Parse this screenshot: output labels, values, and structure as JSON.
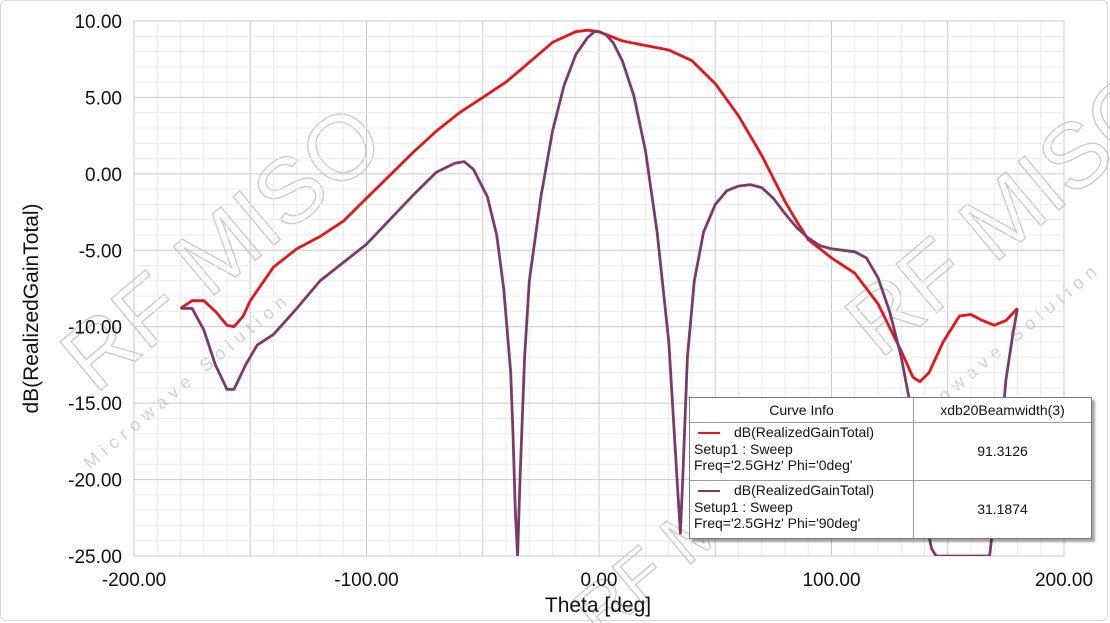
{
  "chart_data": {
    "type": "line",
    "xlabel": "Theta [deg]",
    "ylabel": "dB(RealizedGainTotal)",
    "xlim": [
      -200,
      200
    ],
    "ylim": [
      -25,
      10
    ],
    "x_ticks": [
      "-200.00",
      "-100.00",
      "0.00",
      "100.00",
      "200.00"
    ],
    "y_ticks": [
      "10.00",
      "5.00",
      "0.00",
      "-5.00",
      "-10.00",
      "-15.00",
      "-20.00",
      "-25.00"
    ],
    "grid": true,
    "series": [
      {
        "name": "dB(RealizedGainTotal) Setup1 : Sweep Freq='2.5GHz' Phi='0deg'",
        "color": "#e8141c",
        "points": [
          [
            -180,
            -8.8
          ],
          [
            -175,
            -8.3
          ],
          [
            -170,
            -8.3
          ],
          [
            -165,
            -9.0
          ],
          [
            -160,
            -9.9
          ],
          [
            -157,
            -10.0
          ],
          [
            -153,
            -9.3
          ],
          [
            -150,
            -8.3
          ],
          [
            -140,
            -6.1
          ],
          [
            -130,
            -4.9
          ],
          [
            -120,
            -4.1
          ],
          [
            -110,
            -3.1
          ],
          [
            -100,
            -1.6
          ],
          [
            -90,
            -0.1
          ],
          [
            -80,
            1.4
          ],
          [
            -70,
            2.8
          ],
          [
            -60,
            4.0
          ],
          [
            -50,
            5.0
          ],
          [
            -40,
            6.0
          ],
          [
            -30,
            7.3
          ],
          [
            -20,
            8.6
          ],
          [
            -10,
            9.3
          ],
          [
            -5,
            9.4
          ],
          [
            0,
            9.3
          ],
          [
            5,
            9.0
          ],
          [
            10,
            8.7
          ],
          [
            20,
            8.4
          ],
          [
            30,
            8.1
          ],
          [
            40,
            7.4
          ],
          [
            50,
            5.9
          ],
          [
            60,
            3.8
          ],
          [
            70,
            1.2
          ],
          [
            80,
            -1.8
          ],
          [
            85,
            -3.1
          ],
          [
            90,
            -4.3
          ],
          [
            100,
            -5.5
          ],
          [
            110,
            -6.5
          ],
          [
            120,
            -8.5
          ],
          [
            130,
            -11.6
          ],
          [
            135,
            -13.3
          ],
          [
            138,
            -13.6
          ],
          [
            142,
            -13.0
          ],
          [
            148,
            -11.0
          ],
          [
            155,
            -9.3
          ],
          [
            160,
            -9.2
          ],
          [
            165,
            -9.6
          ],
          [
            170,
            -9.9
          ],
          [
            175,
            -9.6
          ],
          [
            180,
            -8.8
          ]
        ]
      },
      {
        "name": "dB(RealizedGainTotal) Setup1 : Sweep Freq='2.5GHz' Phi='90deg'",
        "color": "#7b3b6a",
        "points": [
          [
            -180,
            -8.8
          ],
          [
            -175,
            -8.8
          ],
          [
            -170,
            -10.2
          ],
          [
            -165,
            -12.5
          ],
          [
            -160,
            -14.1
          ],
          [
            -157,
            -14.1
          ],
          [
            -152,
            -12.5
          ],
          [
            -147,
            -11.2
          ],
          [
            -140,
            -10.5
          ],
          [
            -130,
            -8.8
          ],
          [
            -120,
            -7.0
          ],
          [
            -110,
            -5.8
          ],
          [
            -100,
            -4.6
          ],
          [
            -90,
            -3.0
          ],
          [
            -80,
            -1.4
          ],
          [
            -70,
            0.1
          ],
          [
            -62,
            0.7
          ],
          [
            -58,
            0.8
          ],
          [
            -54,
            0.3
          ],
          [
            -48,
            -1.5
          ],
          [
            -44,
            -4.0
          ],
          [
            -41,
            -7.5
          ],
          [
            -38,
            -13.0
          ],
          [
            -37,
            -17.0
          ],
          [
            -36,
            -22.0
          ],
          [
            -35,
            -25.0
          ],
          [
            -34,
            -20.0
          ],
          [
            -32,
            -12.0
          ],
          [
            -30,
            -7.0
          ],
          [
            -25,
            -1.5
          ],
          [
            -20,
            2.8
          ],
          [
            -15,
            5.8
          ],
          [
            -10,
            7.8
          ],
          [
            -5,
            8.9
          ],
          [
            -2,
            9.3
          ],
          [
            0,
            9.3
          ],
          [
            3,
            9.1
          ],
          [
            6,
            8.6
          ],
          [
            10,
            7.4
          ],
          [
            15,
            5.1
          ],
          [
            20,
            1.5
          ],
          [
            25,
            -3.8
          ],
          [
            30,
            -11.0
          ],
          [
            32,
            -16.0
          ],
          [
            34,
            -21.0
          ],
          [
            35,
            -23.5
          ],
          [
            36,
            -20.0
          ],
          [
            38,
            -12.0
          ],
          [
            41,
            -7.0
          ],
          [
            45,
            -3.8
          ],
          [
            50,
            -2.0
          ],
          [
            55,
            -1.1
          ],
          [
            60,
            -0.8
          ],
          [
            65,
            -0.7
          ],
          [
            70,
            -0.9
          ],
          [
            75,
            -1.6
          ],
          [
            80,
            -2.6
          ],
          [
            85,
            -3.5
          ],
          [
            90,
            -4.2
          ],
          [
            95,
            -4.7
          ],
          [
            100,
            -4.9
          ],
          [
            110,
            -5.1
          ],
          [
            115,
            -5.5
          ],
          [
            120,
            -6.8
          ],
          [
            125,
            -9.0
          ],
          [
            130,
            -12.0
          ],
          [
            135,
            -16.0
          ],
          [
            139,
            -20.5
          ],
          [
            141,
            -23.0
          ],
          [
            143,
            -24.5
          ],
          [
            145,
            -25.0
          ],
          [
            168,
            -25.0
          ],
          [
            171,
            -21.0
          ],
          [
            173,
            -17.0
          ],
          [
            175,
            -13.5
          ],
          [
            178,
            -10.5
          ],
          [
            180,
            -8.8
          ]
        ]
      }
    ]
  },
  "legend": {
    "header_curve": "Curve Info",
    "header_value": "xdb20Beamwidth(3)",
    "rows": [
      {
        "line1": "dB(RealizedGainTotal)",
        "line2": "Setup1 : Sweep",
        "line3": "Freq='2.5GHz' Phi='0deg'",
        "value": "91.3126",
        "color": "#e8141c"
      },
      {
        "line1": "dB(RealizedGainTotal)",
        "line2": "Setup1 : Sweep",
        "line3": "Freq='2.5GHz' Phi='90deg'",
        "value": "31.1874",
        "color": "#7b3b6a"
      }
    ]
  },
  "watermark": {
    "text": "RF MISO",
    "subtext": "Microwave Solution"
  }
}
